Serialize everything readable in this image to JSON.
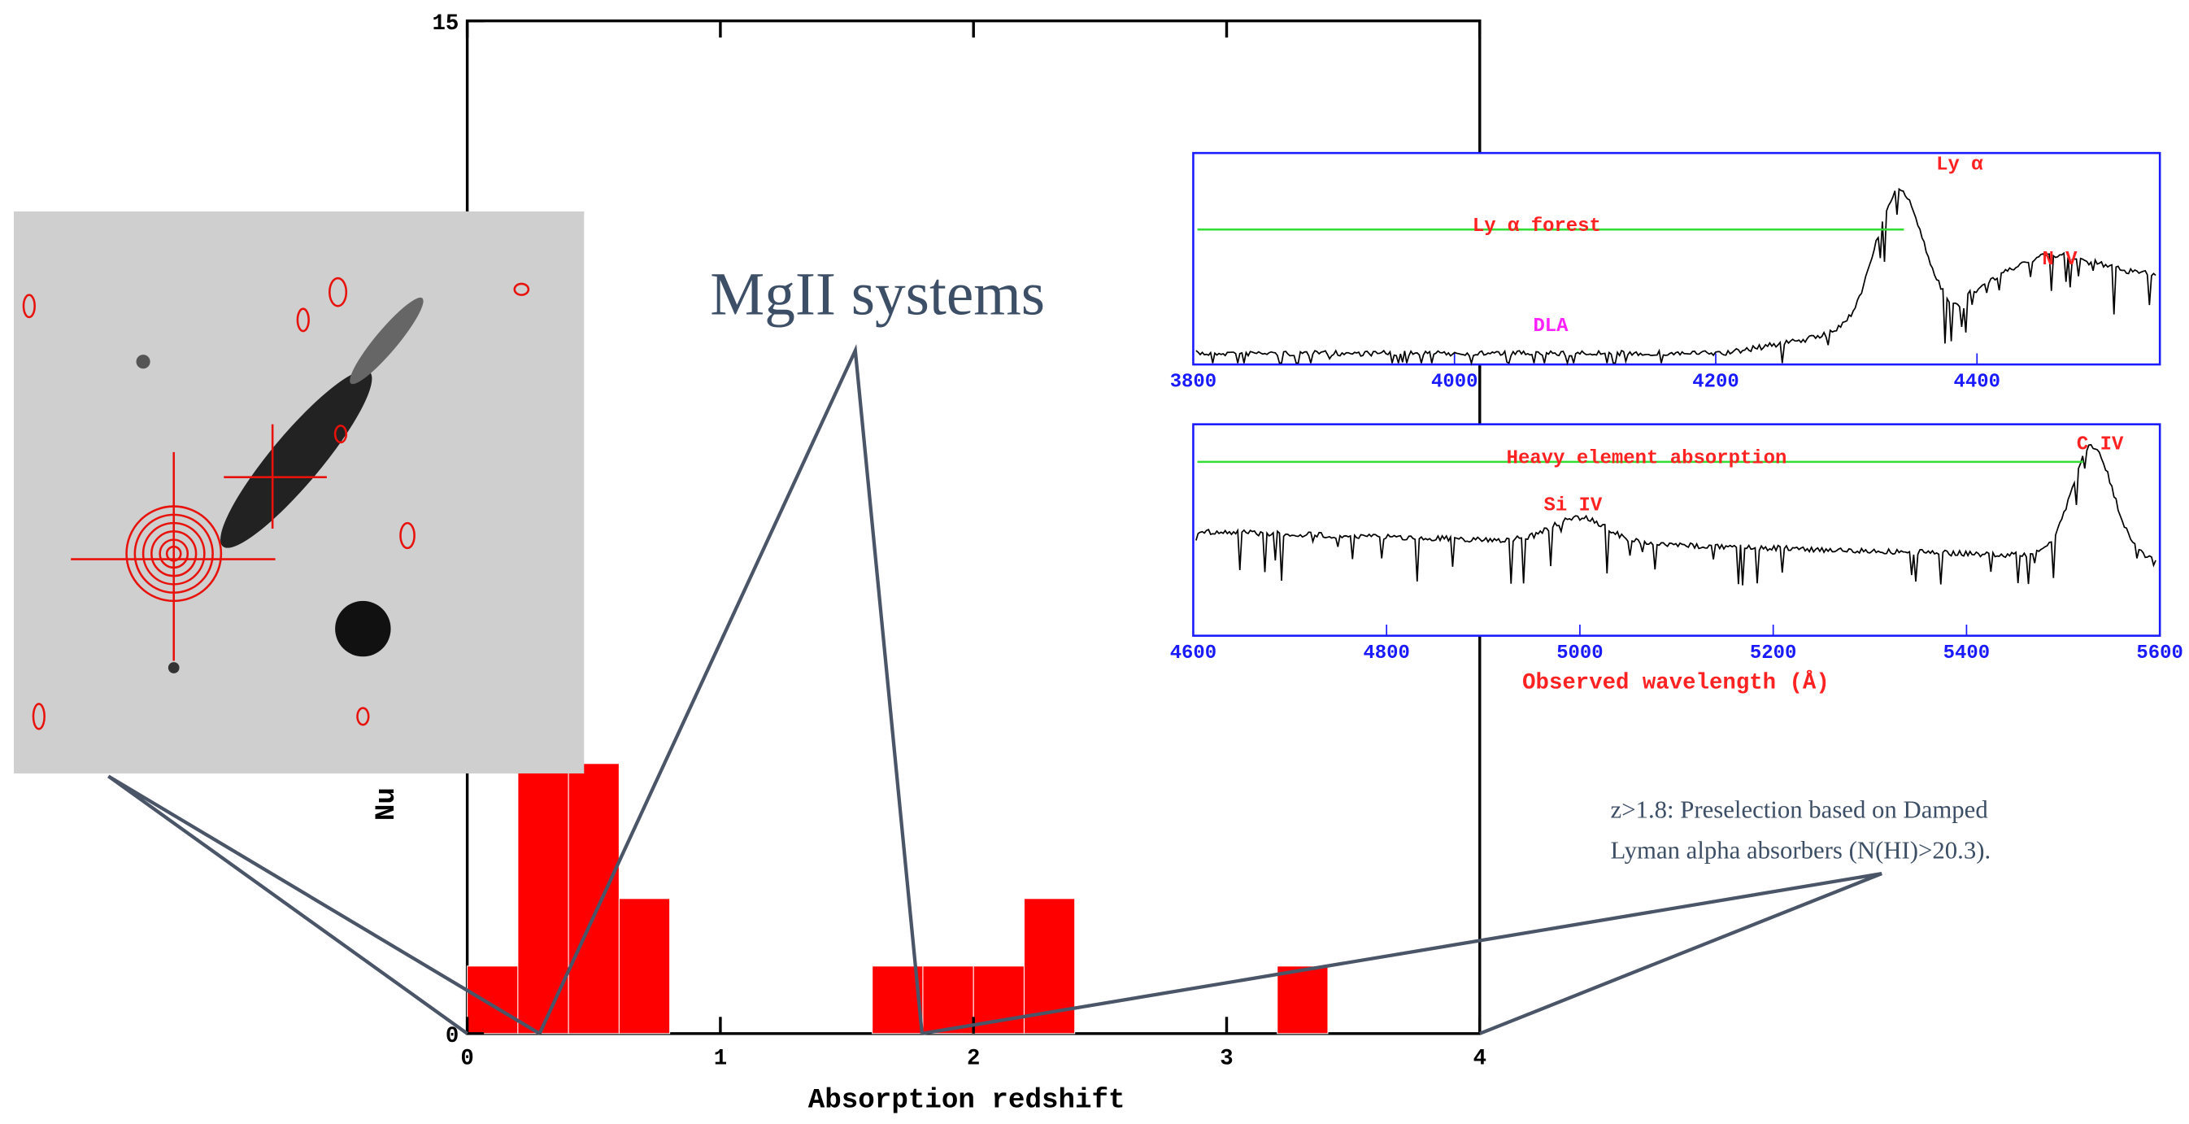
{
  "chart_data": {
    "type": "histogram",
    "x_label": "Absorption redshift",
    "y_label": "Nu",
    "bins": [
      0,
      0.2,
      0.4,
      0.6,
      0.8,
      1,
      1.2,
      1.4,
      1.6,
      1.8,
      2,
      2.2,
      2.4,
      2.6,
      2.8,
      3,
      3.2,
      3.4,
      3.6,
      3.8,
      4
    ],
    "values": [
      1,
      4,
      4,
      2,
      0,
      0,
      0,
      0,
      1,
      1,
      1,
      2,
      0,
      0,
      0,
      0,
      1,
      0,
      0,
      0
    ],
    "color": "#ff0000",
    "xlim": [
      0,
      4
    ],
    "xticks": [
      0,
      1,
      2,
      3,
      4
    ],
    "ylim": [
      0,
      15
    ],
    "yticks": [
      0,
      15
    ]
  },
  "annotations": {
    "mgii": "MgII systems",
    "dla": [
      "z>1.8: Preselection based on Damped",
      "Lyman alpha absorbers (N(HI)>20.3)."
    ]
  },
  "spectra": [
    {
      "xlim": [
        3800,
        4540
      ],
      "xticks": [
        3800,
        4000,
        4200,
        4400
      ],
      "labels": {
        "forest": "Ly α   forest",
        "lya": "Ly α",
        "nv": "N V",
        "dla": "DLA"
      }
    },
    {
      "xlim": [
        4600,
        5600
      ],
      "xticks": [
        4600,
        4800,
        5000,
        5200,
        5400,
        5600
      ],
      "labels": {
        "heavy": "Heavy element absorption",
        "siiv": "Si IV",
        "civ": "C IV"
      },
      "x_label": "Observed wavelength (Å)"
    }
  ]
}
